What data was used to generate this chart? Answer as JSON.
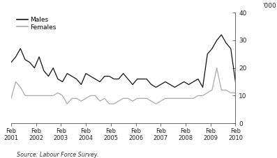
{
  "source": "Source: Labour Force Survey.",
  "legend_males": "Males",
  "legend_females": "Females",
  "ylabel_right": "'000",
  "yticks": [
    0,
    10,
    20,
    30,
    40
  ],
  "male_color": "#111111",
  "female_color": "#aaaaaa",
  "line_width": 0.9,
  "x_labels": [
    "Feb\n2001",
    "Feb\n2002",
    "Feb\n2003",
    "Feb\n2004",
    "Feb\n2005",
    "Feb\n2006",
    "Feb\n2007",
    "Feb\n2008",
    "Feb\n2009",
    "Feb\n2010"
  ],
  "males": [
    22,
    24,
    27,
    23,
    22,
    20,
    24,
    19,
    17,
    20,
    16,
    15,
    18,
    17,
    16,
    14,
    18,
    17,
    16,
    15,
    17,
    17,
    16,
    16,
    18,
    16,
    14,
    16,
    16,
    16,
    14,
    13,
    14,
    15,
    14,
    13,
    14,
    15,
    14,
    15,
    16,
    13,
    25,
    27,
    30,
    32,
    29,
    27,
    15
  ],
  "females": [
    9,
    15,
    13,
    10,
    10,
    10,
    10,
    10,
    10,
    10,
    11,
    10,
    7,
    9,
    9,
    8,
    9,
    10,
    10,
    8,
    9,
    7,
    7,
    8,
    9,
    9,
    8,
    9,
    9,
    9,
    8,
    7,
    8,
    9,
    9,
    9,
    9,
    9,
    9,
    9,
    10,
    10,
    11,
    12,
    20,
    12,
    12,
    11,
    11
  ],
  "background_color": "#ffffff"
}
